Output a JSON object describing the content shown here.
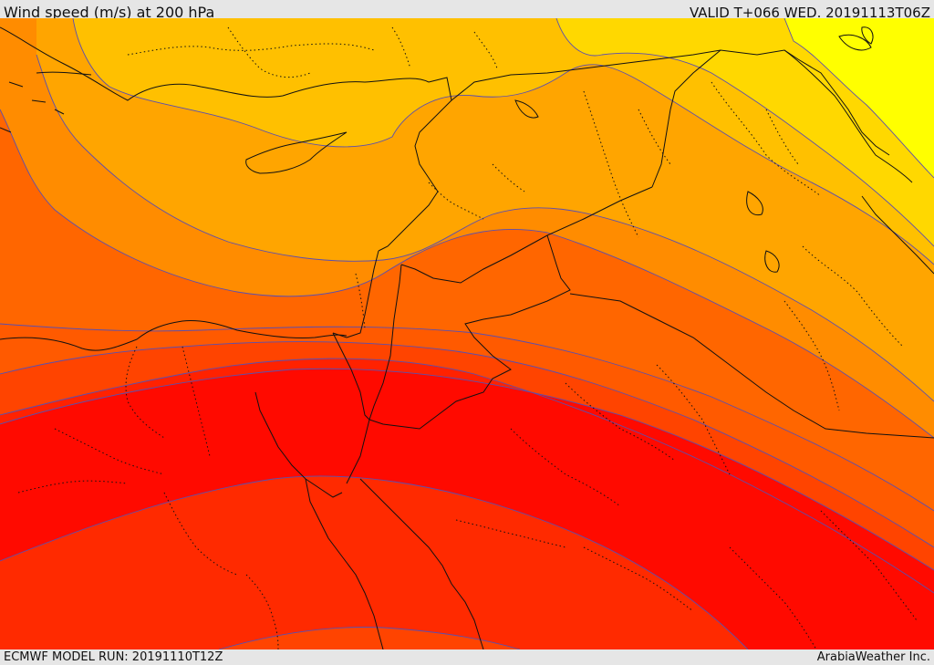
{
  "header": {
    "title": "Wind speed (m/s) at 200 hPa",
    "valid": "VALID T+066 WED. 20191113T06Z"
  },
  "footer": {
    "model_run": "ECMWF MODEL RUN: 20191110T12Z",
    "credit": "ArabiaWeather Inc."
  },
  "map": {
    "field": "wind speed",
    "level": "200 hPa",
    "units": "m/s",
    "colors": {
      "band_1": "#ffff00",
      "band_2": "#ffd800",
      "band_3": "#ffc000",
      "band_4": "#ffa500",
      "band_5": "#ff8c00",
      "band_6": "#ff6600",
      "band_7": "#ff4400",
      "band_8": "#ff2a00",
      "band_9": "#ff0a00",
      "contour_line": "#5a4fb0",
      "border_line": "#111111"
    }
  }
}
